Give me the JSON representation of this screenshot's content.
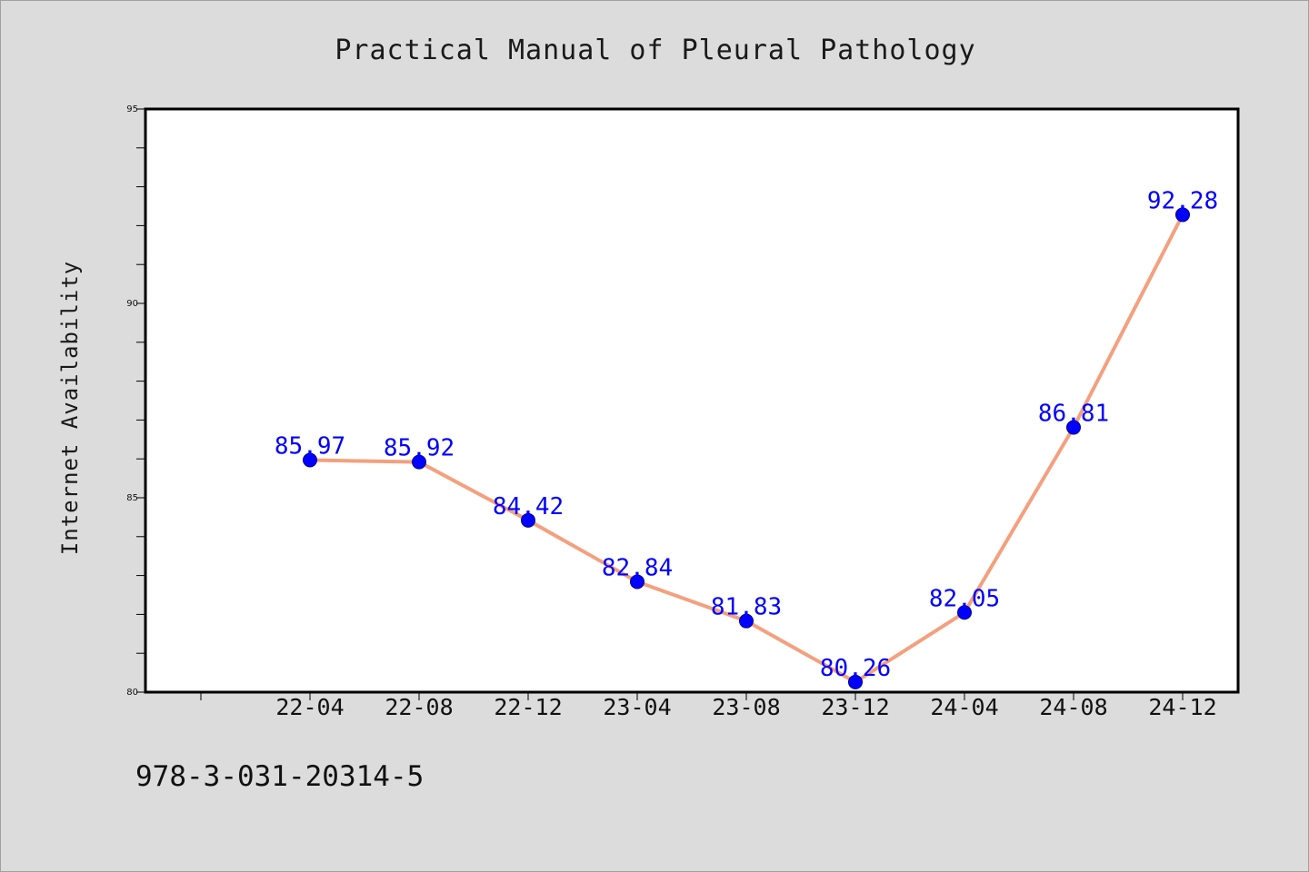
{
  "chart_data": {
    "type": "line",
    "title": "Practical Manual of Pleural Pathology",
    "xlabel": "",
    "ylabel": "Internet Availability",
    "categories": [
      "22-04",
      "22-08",
      "22-12",
      "23-04",
      "23-08",
      "23-12",
      "24-04",
      "24-08",
      "24-12"
    ],
    "series": [
      {
        "values": [
          85.97,
          85.92,
          84.42,
          82.84,
          81.83,
          80.26,
          82.05,
          86.81,
          92.28
        ],
        "data_labels": [
          "85.97",
          "85.92",
          "84.42",
          "82.84",
          "81.83",
          "80.26",
          "82.05",
          "86.81",
          "92.28"
        ]
      }
    ],
    "ylim": [
      80,
      95
    ],
    "yticks": [
      "80",
      "85",
      "90",
      "95"
    ],
    "grid": false,
    "legend": "none",
    "line_color": "#f4a07e",
    "marker_color": "#0000ff",
    "label_color": "#0000ff"
  },
  "footer": {
    "isbn": "978-3-031-20314-5"
  }
}
